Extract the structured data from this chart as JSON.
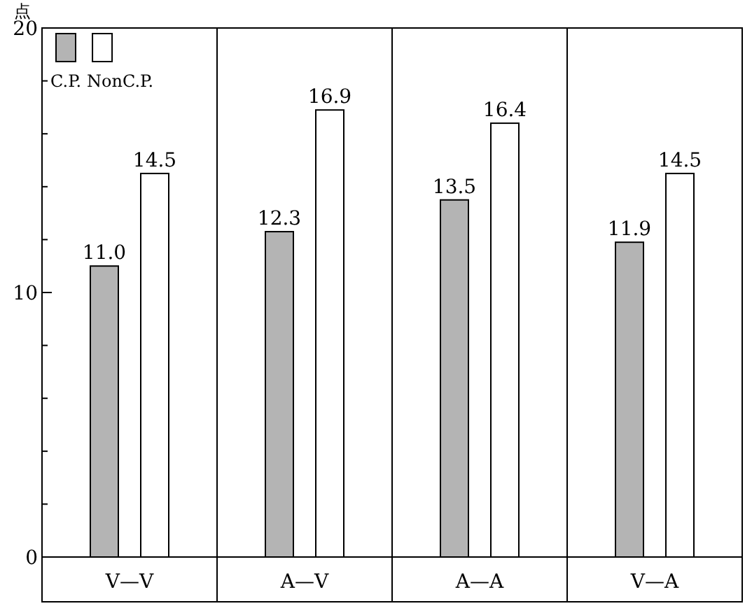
{
  "chart_data": {
    "type": "bar",
    "ylabel": "点",
    "categories": [
      "V—V",
      "A—V",
      "A—A",
      "V—A"
    ],
    "series": [
      {
        "name": "C.P.",
        "color": "#b4b4b4",
        "values": [
          11.0,
          12.3,
          13.5,
          11.9
        ],
        "value_labels": [
          "11.0",
          "12.3",
          "13.5",
          "11.9"
        ]
      },
      {
        "name": "NonC.P.",
        "color": "#ffffff",
        "values": [
          14.5,
          16.9,
          16.4,
          14.5
        ],
        "value_labels": [
          "14.5",
          "16.9",
          "16.4",
          "14.5"
        ]
      }
    ],
    "ylim": [
      0,
      20
    ],
    "yticks": [
      0,
      {
        "value": 2,
        "label": null
      },
      {
        "value": 4,
        "label": null
      },
      {
        "value": 6,
        "label": null
      },
      {
        "value": 8,
        "label": null
      },
      10,
      {
        "value": 12,
        "label": null
      },
      {
        "value": 14,
        "label": null
      },
      {
        "value": 16,
        "label": null
      },
      {
        "value": 18,
        "label": null
      },
      20
    ],
    "legend": "top left",
    "grid": false
  }
}
